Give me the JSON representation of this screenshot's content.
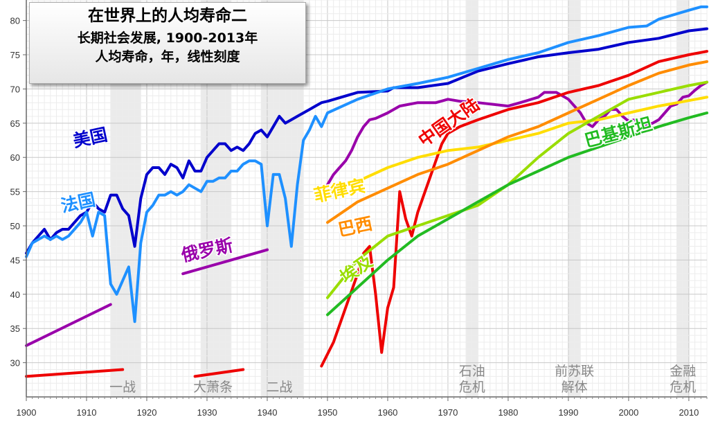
{
  "title": {
    "line1": "在世界上的人均寿命二",
    "line2": "长期社会发展, 1900-2013年",
    "line3": "人均寿命，年，线性刻度"
  },
  "chart_data": {
    "type": "line",
    "xlim": [
      1900,
      2013
    ],
    "ylim": [
      25,
      83
    ],
    "x_ticks": [
      1900,
      1910,
      1920,
      1930,
      1940,
      1950,
      1960,
      1970,
      1980,
      1990,
      2000,
      2010
    ],
    "y_ticks": [
      30,
      35,
      40,
      45,
      50,
      55,
      60,
      65,
      70,
      75,
      80
    ],
    "grid": true,
    "shaded_periods": [
      {
        "from": 1914,
        "to": 1918,
        "label": [
          "一战"
        ],
        "label_x": 1916
      },
      {
        "from": 1929,
        "to": 1933,
        "label": [
          "大萧条"
        ],
        "label_x": 1931
      },
      {
        "from": 1939,
        "to": 1945,
        "label": [
          "二战"
        ],
        "label_x": 1942
      },
      {
        "from": 1973,
        "to": 1974,
        "label": [
          "石油",
          "危机"
        ],
        "label_x": 1974
      },
      {
        "from": 1990,
        "to": 1991,
        "label": [
          "前苏联",
          "解体"
        ],
        "label_x": 1991
      },
      {
        "from": 2008,
        "to": 2009,
        "label": [
          "金融",
          "危机"
        ],
        "label_x": 2009
      }
    ],
    "series": [
      {
        "name": "美国",
        "color": "#0000cc",
        "label": {
          "x": 1908,
          "y": 61.5,
          "rotate": -12
        },
        "points": [
          [
            1900,
            46
          ],
          [
            1901,
            47.5
          ],
          [
            1902,
            48.5
          ],
          [
            1903,
            49.5
          ],
          [
            1904,
            48
          ],
          [
            1905,
            49
          ],
          [
            1906,
            49.5
          ],
          [
            1907,
            49.5
          ],
          [
            1908,
            50.5
          ],
          [
            1909,
            51.5
          ],
          [
            1910,
            52
          ],
          [
            1911,
            53.5
          ],
          [
            1912,
            52.5
          ],
          [
            1913,
            52
          ],
          [
            1914,
            54.5
          ],
          [
            1915,
            54.5
          ],
          [
            1916,
            52.5
          ],
          [
            1917,
            51.5
          ],
          [
            1918,
            47
          ],
          [
            1919,
            54
          ],
          [
            1920,
            57.5
          ],
          [
            1921,
            58.5
          ],
          [
            1922,
            58.5
          ],
          [
            1923,
            57.5
          ],
          [
            1924,
            59
          ],
          [
            1925,
            58.5
          ],
          [
            1926,
            57
          ],
          [
            1927,
            59.5
          ],
          [
            1928,
            58
          ],
          [
            1929,
            58
          ],
          [
            1930,
            60
          ],
          [
            1931,
            61
          ],
          [
            1932,
            62
          ],
          [
            1933,
            62
          ],
          [
            1934,
            61
          ],
          [
            1935,
            61.5
          ],
          [
            1936,
            61
          ],
          [
            1937,
            62
          ],
          [
            1938,
            63.5
          ],
          [
            1939,
            64
          ],
          [
            1940,
            63
          ],
          [
            1941,
            64.5
          ],
          [
            1942,
            66
          ],
          [
            1943,
            65
          ],
          [
            1944,
            65.5
          ],
          [
            1945,
            66
          ],
          [
            1946,
            66.5
          ],
          [
            1947,
            67
          ],
          [
            1948,
            67.5
          ],
          [
            1949,
            68
          ],
          [
            1950,
            68.2
          ],
          [
            1955,
            69.5
          ],
          [
            1960,
            69.7
          ],
          [
            1961,
            70.2
          ],
          [
            1965,
            70.2
          ],
          [
            1970,
            70.8
          ],
          [
            1975,
            72.6
          ],
          [
            1980,
            73.7
          ],
          [
            1985,
            74.7
          ],
          [
            1990,
            75.3
          ],
          [
            1995,
            75.8
          ],
          [
            2000,
            76.8
          ],
          [
            2005,
            77.4
          ],
          [
            2010,
            78.5
          ],
          [
            2013,
            78.8
          ]
        ]
      },
      {
        "name": "法国",
        "color": "#1e90ff",
        "label": {
          "x": 1906,
          "y": 52,
          "rotate": -12
        },
        "points": [
          [
            1900,
            45.5
          ],
          [
            1901,
            47.5
          ],
          [
            1902,
            48
          ],
          [
            1903,
            48.5
          ],
          [
            1904,
            48
          ],
          [
            1905,
            48.5
          ],
          [
            1906,
            48
          ],
          [
            1907,
            48.5
          ],
          [
            1908,
            49.5
          ],
          [
            1909,
            50.5
          ],
          [
            1910,
            52
          ],
          [
            1911,
            48.5
          ],
          [
            1912,
            52
          ],
          [
            1913,
            51.5
          ],
          [
            1914,
            41.5
          ],
          [
            1915,
            40
          ],
          [
            1916,
            42
          ],
          [
            1917,
            44
          ],
          [
            1918,
            36
          ],
          [
            1919,
            47.5
          ],
          [
            1920,
            52
          ],
          [
            1921,
            53
          ],
          [
            1922,
            54.5
          ],
          [
            1923,
            54.5
          ],
          [
            1924,
            55
          ],
          [
            1925,
            54.5
          ],
          [
            1926,
            55
          ],
          [
            1927,
            56
          ],
          [
            1928,
            55.5
          ],
          [
            1929,
            55
          ],
          [
            1930,
            56.5
          ],
          [
            1931,
            56.5
          ],
          [
            1932,
            57
          ],
          [
            1933,
            57
          ],
          [
            1934,
            58
          ],
          [
            1935,
            58
          ],
          [
            1936,
            59
          ],
          [
            1937,
            59.5
          ],
          [
            1938,
            59.5
          ],
          [
            1939,
            59
          ],
          [
            1940,
            50
          ],
          [
            1941,
            57.5
          ],
          [
            1942,
            57.5
          ],
          [
            1943,
            54
          ],
          [
            1944,
            47
          ],
          [
            1945,
            56
          ],
          [
            1946,
            62.5
          ],
          [
            1947,
            64
          ],
          [
            1948,
            66
          ],
          [
            1949,
            64.5
          ],
          [
            1950,
            66.5
          ],
          [
            1955,
            68.5
          ],
          [
            1960,
            70
          ],
          [
            1965,
            70.8
          ],
          [
            1970,
            71.7
          ],
          [
            1975,
            73
          ],
          [
            1980,
            74.3
          ],
          [
            1985,
            75.3
          ],
          [
            1990,
            76.8
          ],
          [
            1995,
            77.8
          ],
          [
            2000,
            79
          ],
          [
            2003,
            79.2
          ],
          [
            2005,
            80.2
          ],
          [
            2010,
            81.5
          ],
          [
            2012,
            82
          ],
          [
            2013,
            82
          ]
        ]
      },
      {
        "name": "俄罗斯",
        "color": "#9900aa",
        "label": {
          "x": 1926,
          "y": 44.8,
          "rotate": -12
        },
        "points": [
          [
            1900,
            32.5
          ],
          [
            1914,
            38.5
          ]
        ],
        "segments": [
          [
            [
              1900,
              32.5
            ],
            [
              1914,
              38.5
            ]
          ],
          [
            [
              1926,
              43
            ],
            [
              1940,
              46.5
            ]
          ],
          [
            [
              1950,
              56
            ],
            [
              1951,
              57.5
            ],
            [
              1952,
              58.5
            ],
            [
              1953,
              59.5
            ],
            [
              1954,
              61
            ],
            [
              1955,
              63
            ],
            [
              1956,
              64.5
            ],
            [
              1957,
              65.5
            ],
            [
              1958,
              65.7
            ],
            [
              1960,
              66.5
            ],
            [
              1962,
              67.5
            ],
            [
              1965,
              68
            ],
            [
              1968,
              68
            ],
            [
              1970,
              68.5
            ],
            [
              1972,
              68.2
            ],
            [
              1975,
              68
            ],
            [
              1980,
              67.5
            ],
            [
              1982,
              68
            ],
            [
              1985,
              68.8
            ],
            [
              1986,
              69.5
            ],
            [
              1987,
              69.5
            ],
            [
              1988,
              69.5
            ],
            [
              1989,
              69
            ],
            [
              1990,
              68.5
            ],
            [
              1991,
              67.5
            ],
            [
              1992,
              66.5
            ],
            [
              1993,
              65
            ],
            [
              1994,
              64.5
            ],
            [
              1995,
              65.5
            ],
            [
              1996,
              66
            ],
            [
              1997,
              67
            ],
            [
              1998,
              67
            ],
            [
              1999,
              66
            ],
            [
              2000,
              65.3
            ],
            [
              2001,
              65.5
            ],
            [
              2002,
              65
            ],
            [
              2003,
              64.8
            ],
            [
              2004,
              65
            ],
            [
              2005,
              65.5
            ],
            [
              2006,
              66.5
            ],
            [
              2007,
              67.5
            ],
            [
              2008,
              67.8
            ],
            [
              2009,
              68.8
            ],
            [
              2010,
              69
            ],
            [
              2011,
              69.8
            ],
            [
              2012,
              70.5
            ],
            [
              2013,
              71
            ]
          ]
        ]
      },
      {
        "name": "中国大陆",
        "color": "#ee0000",
        "label": {
          "x": 1966,
          "y": 61.5,
          "rotate": -35
        },
        "segments": [
          [
            [
              1900,
              28
            ],
            [
              1916,
              29
            ]
          ],
          [
            [
              1928,
              28
            ],
            [
              1936,
              29
            ]
          ],
          [
            [
              1949,
              29.5
            ],
            [
              1951,
              33
            ],
            [
              1953,
              38
            ],
            [
              1955,
              43
            ],
            [
              1956,
              46
            ],
            [
              1957,
              47
            ],
            [
              1958,
              40
            ],
            [
              1959,
              31.5
            ],
            [
              1960,
              38
            ],
            [
              1961,
              41
            ],
            [
              1962,
              55
            ],
            [
              1963,
              51
            ],
            [
              1964,
              48.5
            ],
            [
              1965,
              52
            ],
            [
              1967,
              57
            ],
            [
              1969,
              62
            ],
            [
              1970,
              63.5
            ],
            [
              1972,
              64.5
            ],
            [
              1975,
              65.5
            ],
            [
              1980,
              67
            ],
            [
              1985,
              68
            ],
            [
              1990,
              69.5
            ],
            [
              1995,
              70.5
            ],
            [
              2000,
              72
            ],
            [
              2005,
              74
            ],
            [
              2010,
              75
            ],
            [
              2013,
              75.5
            ]
          ]
        ]
      },
      {
        "name": "菲律宾",
        "color": "#ffdd00",
        "label": {
          "x": 1948,
          "y": 53.5,
          "rotate": -12
        },
        "points": [
          [
            1950,
            55
          ],
          [
            1955,
            56.5
          ],
          [
            1960,
            58.5
          ],
          [
            1965,
            60
          ],
          [
            1970,
            61
          ],
          [
            1975,
            61.5
          ],
          [
            1980,
            62.5
          ],
          [
            1985,
            63.5
          ],
          [
            1990,
            65
          ],
          [
            1995,
            65.5
          ],
          [
            2000,
            66.5
          ],
          [
            2005,
            67.5
          ],
          [
            2010,
            68.3
          ],
          [
            2013,
            68.8
          ]
        ]
      },
      {
        "name": "巴西",
        "color": "#ff8c00",
        "label": {
          "x": 1952,
          "y": 48.5,
          "rotate": -12
        },
        "points": [
          [
            1950,
            50.5
          ],
          [
            1955,
            53.5
          ],
          [
            1960,
            55.5
          ],
          [
            1965,
            57.5
          ],
          [
            1970,
            59
          ],
          [
            1975,
            61
          ],
          [
            1980,
            63
          ],
          [
            1985,
            64.5
          ],
          [
            1990,
            66.5
          ],
          [
            1995,
            68.5
          ],
          [
            2000,
            70.5
          ],
          [
            2005,
            72.3
          ],
          [
            2010,
            73.5
          ],
          [
            2013,
            74
          ]
        ]
      },
      {
        "name": "埃及",
        "color": "#99dd00",
        "label": {
          "x": 1953,
          "y": 41.5,
          "rotate": -35
        },
        "points": [
          [
            1950,
            39.5
          ],
          [
            1955,
            45
          ],
          [
            1960,
            48.5
          ],
          [
            1965,
            50
          ],
          [
            1970,
            51.5
          ],
          [
            1975,
            53
          ],
          [
            1980,
            56
          ],
          [
            1985,
            60
          ],
          [
            1990,
            63.5
          ],
          [
            1995,
            66
          ],
          [
            2000,
            68.5
          ],
          [
            2005,
            69.5
          ],
          [
            2010,
            70.5
          ],
          [
            2013,
            71
          ]
        ]
      },
      {
        "name": "巴基斯坦",
        "color": "#22bb22",
        "label": {
          "x": 1993,
          "y": 61.5,
          "rotate": -15
        },
        "points": [
          [
            1950,
            37
          ],
          [
            1955,
            41
          ],
          [
            1960,
            45
          ],
          [
            1965,
            48.5
          ],
          [
            1970,
            51
          ],
          [
            1975,
            53.5
          ],
          [
            1980,
            56
          ],
          [
            1985,
            58
          ],
          [
            1990,
            60
          ],
          [
            1995,
            61.5
          ],
          [
            2000,
            63
          ],
          [
            2005,
            64.5
          ],
          [
            2010,
            65.8
          ],
          [
            2013,
            66.5
          ]
        ]
      }
    ]
  }
}
